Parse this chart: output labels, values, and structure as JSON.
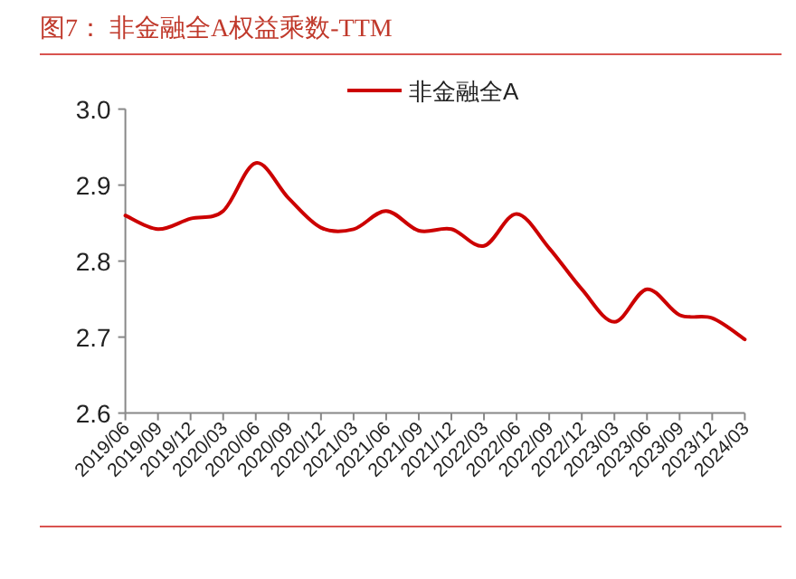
{
  "chart_data": {
    "type": "line",
    "title": "图7：  非金融全A权益乘数-TTM",
    "categories": [
      "2019/06",
      "2019/09",
      "2019/12",
      "2020/03",
      "2020/06",
      "2020/09",
      "2020/12",
      "2021/03",
      "2021/06",
      "2021/09",
      "2021/12",
      "2022/03",
      "2022/06",
      "2022/09",
      "2022/12",
      "2023/03",
      "2023/06",
      "2023/09",
      "2023/12",
      "2024/03"
    ],
    "series": [
      {
        "name": "非金融全A",
        "color": "#cc0000",
        "values": [
          2.86,
          2.842,
          2.856,
          2.866,
          2.929,
          2.883,
          2.844,
          2.842,
          2.866,
          2.84,
          2.842,
          2.82,
          2.862,
          2.817,
          2.763,
          2.72,
          2.763,
          2.729,
          2.725,
          2.697
        ]
      }
    ],
    "ylim": [
      2.6,
      3.0
    ],
    "yticks": [
      {
        "value": 2.6,
        "label": "2.6"
      },
      {
        "value": 2.7,
        "label": "2.7"
      },
      {
        "value": 2.8,
        "label": "2.8"
      },
      {
        "value": 2.9,
        "label": "2.9"
      },
      {
        "value": 3.0,
        "label": "3.0"
      }
    ],
    "legend": "top",
    "grid": false,
    "marker": "none",
    "line_style": "solid"
  }
}
